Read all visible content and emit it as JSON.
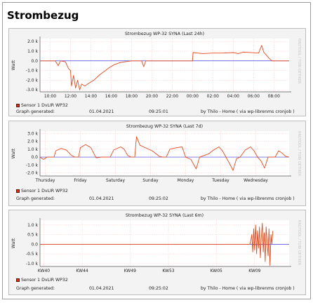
{
  "page": {
    "title": "Strombezug"
  },
  "colors": {
    "series": "#e8481c",
    "zero_line": "#3f3fdf",
    "panel_bg": "#f3f3f3",
    "plot_bg": "#ffffff",
    "grid": "#ffb4b4",
    "axis": "#555555"
  },
  "chart_data": [
    {
      "type": "line",
      "title": "Strombezug WP-32 SYNA (Last 24h)",
      "ylabel": "Watt",
      "watermark": "RRDTOOL / TOBI OETIKER",
      "ylim": [
        -3.2,
        2.3
      ],
      "yticks": [
        {
          "v": 2,
          "label": "2.0 k"
        },
        {
          "v": 1,
          "label": "1.0 k"
        },
        {
          "v": 0,
          "label": "0.0"
        },
        {
          "v": -1,
          "label": "-1.0 k"
        },
        {
          "v": -2,
          "label": "-2.0 k"
        },
        {
          "v": -3,
          "label": "-3.0 k"
        }
      ],
      "xlim": [
        9,
        33.5
      ],
      "xticks": [
        {
          "v": 10,
          "label": "10:00"
        },
        {
          "v": 12,
          "label": "12:00"
        },
        {
          "v": 14,
          "label": "14:00"
        },
        {
          "v": 16,
          "label": "16:00"
        },
        {
          "v": 18,
          "label": "18:00"
        },
        {
          "v": 20,
          "label": "20:00"
        },
        {
          "v": 22,
          "label": "22:00"
        },
        {
          "v": 24,
          "label": "00:00"
        },
        {
          "v": 26,
          "label": "02:00"
        },
        {
          "v": 28,
          "label": "04:00"
        },
        {
          "v": 30,
          "label": "06:00"
        },
        {
          "v": 32,
          "label": "08:00"
        }
      ],
      "series": [
        {
          "name": "Sensor 1 DvLIR WP32",
          "points": [
            [
              9,
              0
            ],
            [
              10.5,
              0
            ],
            [
              10.8,
              -0.5
            ],
            [
              11,
              0
            ],
            [
              11.5,
              -0.1
            ],
            [
              11.8,
              -0.8
            ],
            [
              12,
              -1
            ],
            [
              12.1,
              -2.6
            ],
            [
              12.3,
              -1.5
            ],
            [
              12.5,
              -2.8
            ],
            [
              12.7,
              -2
            ],
            [
              12.9,
              -3
            ],
            [
              13.1,
              -2.4
            ],
            [
              13.4,
              -2.6
            ],
            [
              13.8,
              -2.3
            ],
            [
              14.3,
              -2
            ],
            [
              14.8,
              -1.5
            ],
            [
              15.3,
              -1.1
            ],
            [
              15.8,
              -0.7
            ],
            [
              16.3,
              -0.4
            ],
            [
              16.8,
              -0.2
            ],
            [
              17.3,
              -0.1
            ],
            [
              18,
              0
            ],
            [
              19,
              0
            ],
            [
              19.2,
              -0.6
            ],
            [
              19.4,
              0
            ],
            [
              20,
              0
            ],
            [
              24,
              0
            ],
            [
              24.05,
              0.85
            ],
            [
              25,
              0.75
            ],
            [
              26,
              0.8
            ],
            [
              27,
              0.8
            ],
            [
              28,
              0.85
            ],
            [
              28.5,
              0.75
            ],
            [
              29,
              0.9
            ],
            [
              30.5,
              0.8
            ],
            [
              30.8,
              1.6
            ],
            [
              31,
              0.9
            ],
            [
              31.5,
              0.3
            ],
            [
              31.8,
              0
            ],
            [
              33.5,
              0
            ]
          ]
        }
      ],
      "legend": "Sensor 1 DvLIR WP32",
      "footer": {
        "generated_label": "Graph generated:",
        "date": "01.04.2021",
        "time": "09:25:01",
        "credit": "by Thilo - Home ( via wp-librenms cronjob )"
      }
    },
    {
      "type": "line",
      "title": "Strombezug WP-32 SYNA (Last 7d)",
      "ylabel": "Watt",
      "watermark": "RRDTOOL / TOBI OETIKER",
      "ylim": [
        -2.4,
        3.3
      ],
      "yticks": [
        {
          "v": 3,
          "label": "3.0 k"
        },
        {
          "v": 2,
          "label": "2.0 k"
        },
        {
          "v": 1,
          "label": "1.0 k"
        },
        {
          "v": 0,
          "label": "0.0"
        },
        {
          "v": -1,
          "label": "-1.0 k"
        },
        {
          "v": -2,
          "label": "-2.0 k"
        }
      ],
      "xlim": [
        0,
        7.1
      ],
      "xticks": [
        {
          "v": 0.15,
          "label": "Thursday"
        },
        {
          "v": 1.15,
          "label": "Friday"
        },
        {
          "v": 2.15,
          "label": "Saturday"
        },
        {
          "v": 3.15,
          "label": "Sunday"
        },
        {
          "v": 4.15,
          "label": "Monday"
        },
        {
          "v": 5.15,
          "label": "Tuesday"
        },
        {
          "v": 6.15,
          "label": "Wednesday"
        }
      ],
      "series": [
        {
          "name": "Sensor 1 DvLIR WP32",
          "points": [
            [
              0,
              0
            ],
            [
              0.1,
              -0.3
            ],
            [
              0.2,
              0
            ],
            [
              0.4,
              0
            ],
            [
              0.45,
              0.8
            ],
            [
              0.6,
              1.1
            ],
            [
              0.75,
              0.9
            ],
            [
              0.9,
              0.2
            ],
            [
              1.0,
              0
            ],
            [
              1.1,
              0
            ],
            [
              1.15,
              1.2
            ],
            [
              1.3,
              1.6
            ],
            [
              1.45,
              1.2
            ],
            [
              1.6,
              -0.1
            ],
            [
              1.75,
              0
            ],
            [
              2.0,
              0
            ],
            [
              2.1,
              0.9
            ],
            [
              2.3,
              1.3
            ],
            [
              2.4,
              1.0
            ],
            [
              2.5,
              0.2
            ],
            [
              2.6,
              0
            ],
            [
              2.7,
              0
            ],
            [
              2.75,
              2.6
            ],
            [
              2.85,
              1.5
            ],
            [
              3.0,
              1.2
            ],
            [
              3.2,
              0.8
            ],
            [
              3.4,
              0.1
            ],
            [
              3.5,
              0
            ],
            [
              3.6,
              0
            ],
            [
              3.7,
              1.0
            ],
            [
              3.9,
              1.2
            ],
            [
              4.05,
              1.3
            ],
            [
              4.15,
              0
            ],
            [
              4.3,
              -0.3
            ],
            [
              4.45,
              -1.5
            ],
            [
              4.55,
              0
            ],
            [
              4.8,
              0.4
            ],
            [
              4.95,
              0.9
            ],
            [
              5.1,
              1.3
            ],
            [
              5.2,
              0.8
            ],
            [
              5.3,
              0
            ],
            [
              5.4,
              -0.8
            ],
            [
              5.5,
              -1.7
            ],
            [
              5.6,
              -0.2
            ],
            [
              5.7,
              0
            ],
            [
              5.85,
              0.9
            ],
            [
              6.0,
              1.3
            ],
            [
              6.1,
              0.8
            ],
            [
              6.2,
              0
            ],
            [
              6.3,
              -0.5
            ],
            [
              6.4,
              -1.4
            ],
            [
              6.5,
              0
            ],
            [
              6.7,
              0
            ],
            [
              6.8,
              0.8
            ],
            [
              6.9,
              0.5
            ],
            [
              7.0,
              0.1
            ],
            [
              7.1,
              0
            ]
          ]
        }
      ],
      "legend": "Sensor 1 DvLIR WP32",
      "footer": {
        "generated_label": "Graph generated:",
        "date": "01.04.2021",
        "time": "09:25:02",
        "credit": "by Thilo - Home ( via wp-librenms cronjob )"
      }
    },
    {
      "type": "line",
      "title": "Strombezug WP-32 SYNA (Last 6m)",
      "ylabel": "Watt",
      "watermark": "RRDTOOL / TOBI OETIKER",
      "ylim": [
        -1.15,
        1.25
      ],
      "yticks": [
        {
          "v": 1,
          "label": "1.0 k"
        },
        {
          "v": 0.5,
          "label": "0.5 k"
        },
        {
          "v": 0,
          "label": "0.0"
        },
        {
          "v": -0.5,
          "label": "-0.5 k"
        },
        {
          "v": -1,
          "label": "-1.0 k"
        }
      ],
      "xlim": [
        0,
        26
      ],
      "xticks": [
        {
          "v": 0.4,
          "label": "KW40"
        },
        {
          "v": 4.4,
          "label": "KW44"
        },
        {
          "v": 9.4,
          "label": "KW49"
        },
        {
          "v": 13.4,
          "label": "KW53"
        },
        {
          "v": 18.4,
          "label": "KW05"
        },
        {
          "v": 22.4,
          "label": "KW09"
        }
      ],
      "series": [
        {
          "name": "Sensor 1 DvLIR WP32",
          "points": [
            [
              0,
              0
            ],
            [
              21.9,
              0
            ],
            [
              22.0,
              0.2
            ],
            [
              22.1,
              0.5
            ],
            [
              22.2,
              -0.4
            ],
            [
              22.3,
              0.8
            ],
            [
              22.4,
              -0.3
            ],
            [
              22.5,
              1.0
            ],
            [
              22.6,
              -0.5
            ],
            [
              22.7,
              0.7
            ],
            [
              22.8,
              -0.2
            ],
            [
              22.9,
              0.9
            ],
            [
              23.0,
              -0.7
            ],
            [
              23.1,
              0.4
            ],
            [
              23.2,
              1.1
            ],
            [
              23.3,
              -0.4
            ],
            [
              23.4,
              0.6
            ],
            [
              23.5,
              -0.9
            ],
            [
              23.6,
              0.9
            ],
            [
              23.7,
              0.1
            ],
            [
              23.8,
              -0.6
            ],
            [
              23.9,
              0.8
            ],
            [
              24.0,
              -1.1
            ],
            [
              24.1,
              0.5
            ],
            [
              24.2,
              0
            ],
            [
              24.3,
              0.7
            ]
          ]
        }
      ],
      "legend": "Sensor 1 DvLIR WP32",
      "footer": {
        "generated_label": "Graph generated:",
        "date": "01.04.2021",
        "time": "09:25:02",
        "credit": "by Thilo - Home ( via wp-librenms cronjob )"
      }
    }
  ]
}
